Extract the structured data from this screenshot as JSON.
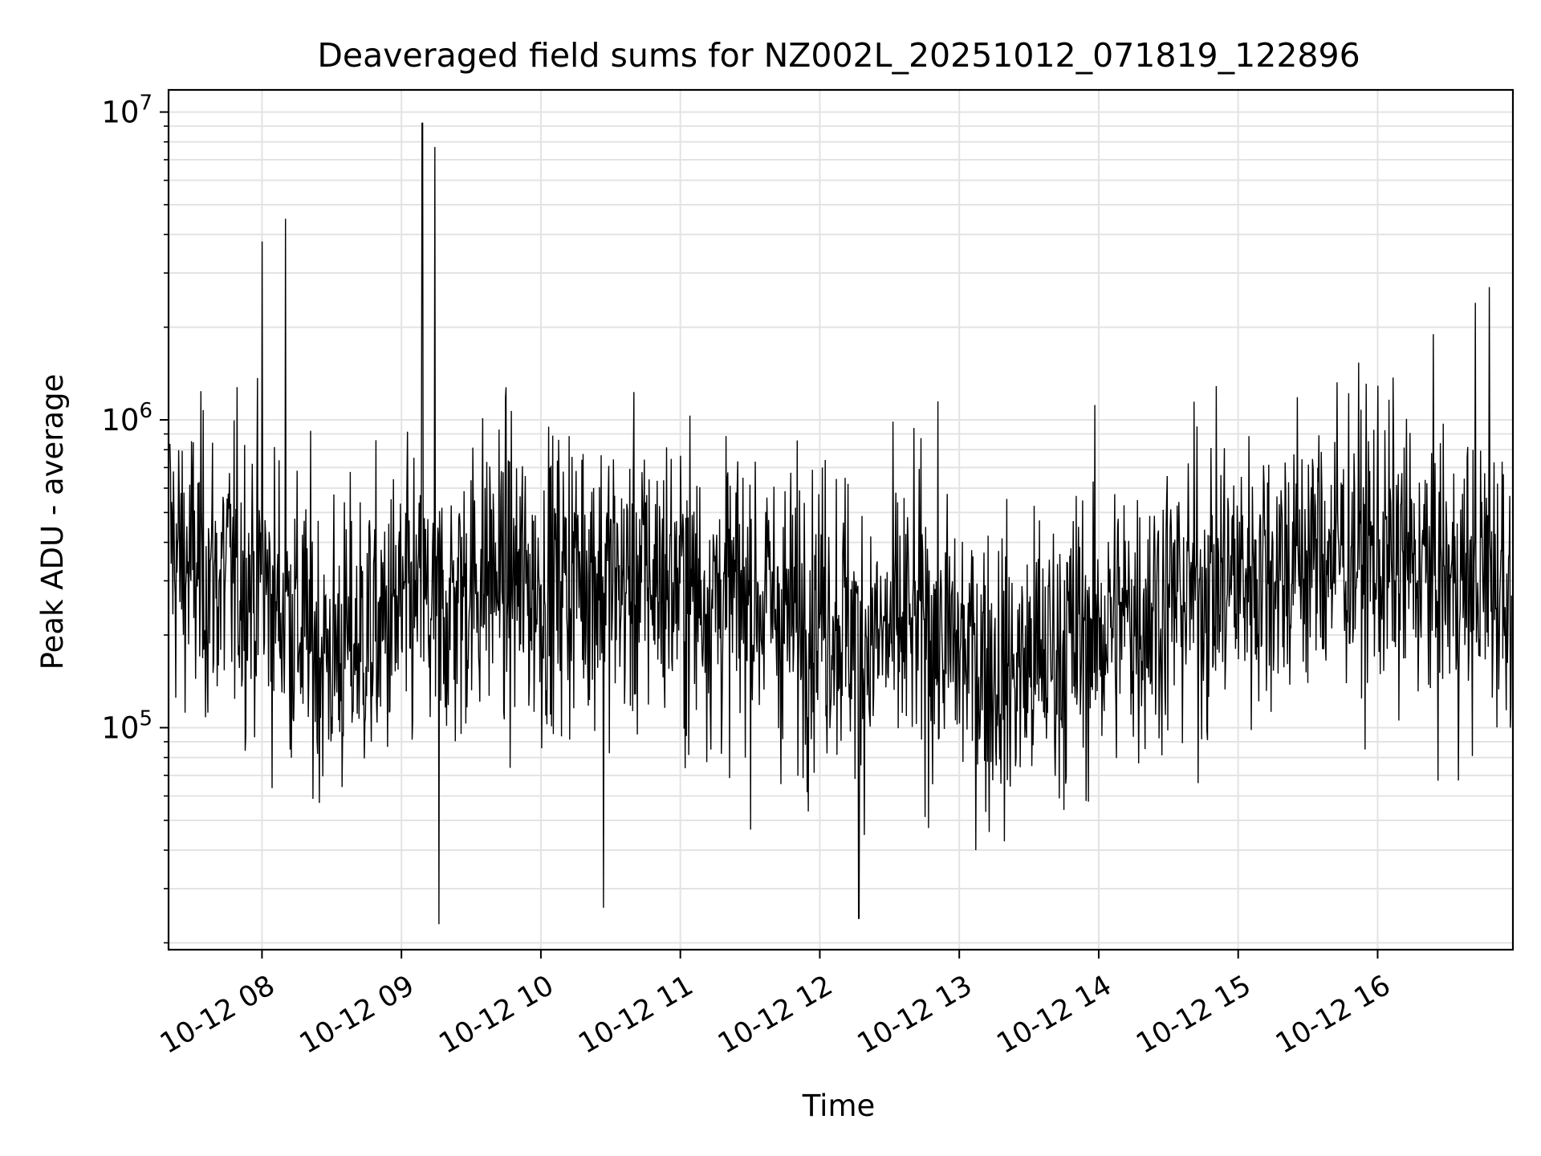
{
  "chart_data": {
    "type": "line",
    "title": "Deaveraged field sums for NZ002L_20251012_071819_122896",
    "xlabel": "Time",
    "ylabel": "Peak ADU - average",
    "y_scale": "log",
    "ylim": [
      19000,
      11800000
    ],
    "xlim_hours": [
      7.33,
      16.97
    ],
    "grid": "on (major and minor)",
    "x_ticks": [
      {
        "hour": 8,
        "label": "10-12 08"
      },
      {
        "hour": 9,
        "label": "10-12 09"
      },
      {
        "hour": 10,
        "label": "10-12 10"
      },
      {
        "hour": 11,
        "label": "10-12 11"
      },
      {
        "hour": 12,
        "label": "10-12 12"
      },
      {
        "hour": 13,
        "label": "10-12 13"
      },
      {
        "hour": 14,
        "label": "10-12 14"
      },
      {
        "hour": 15,
        "label": "10-12 15"
      },
      {
        "hour": 16,
        "label": "10-12 16"
      }
    ],
    "y_ticks": [
      {
        "value": 100000,
        "base": "10",
        "exp": "5"
      },
      {
        "value": 1000000,
        "base": "10",
        "exp": "6"
      },
      {
        "value": 10000000,
        "base": "10",
        "exp": "7"
      }
    ],
    "series": [
      {
        "name": "Peak ADU - average",
        "color": "#000000",
        "x_hours": [
          7.35,
          7.4,
          7.5,
          7.6,
          7.7,
          7.8,
          7.9,
          8.0,
          8.08,
          8.17,
          8.25,
          8.35,
          8.45,
          8.55,
          8.65,
          8.75,
          8.85,
          8.95,
          9.05,
          9.15,
          9.22,
          9.3,
          9.4,
          9.5,
          9.6,
          9.7,
          9.8,
          9.9,
          10.0,
          10.1,
          10.2,
          10.3,
          10.4,
          10.5,
          10.6,
          10.7,
          10.8,
          10.9,
          11.0,
          11.1,
          11.2,
          11.3,
          11.4,
          11.5,
          11.6,
          11.7,
          11.8,
          11.9,
          12.0,
          12.1,
          12.2,
          12.3,
          12.4,
          12.5,
          12.6,
          12.7,
          12.8,
          12.9,
          13.0,
          13.1,
          13.2,
          13.3,
          13.4,
          13.5,
          13.6,
          13.7,
          13.8,
          13.9,
          14.0,
          14.1,
          14.2,
          14.3,
          14.4,
          14.5,
          14.6,
          14.7,
          14.8,
          14.9,
          15.0,
          15.1,
          15.2,
          15.3,
          15.4,
          15.5,
          15.6,
          15.7,
          15.8,
          15.9,
          16.0,
          16.1,
          16.2,
          16.3,
          16.4,
          16.5,
          16.6,
          16.7,
          16.8,
          16.9,
          16.97
        ],
        "typical_level": [
          400000,
          350000,
          330000,
          320000,
          300000,
          320000,
          310000,
          290000,
          260000,
          240000,
          220000,
          200000,
          170000,
          180000,
          190000,
          200000,
          210000,
          230000,
          240000,
          250000,
          230000,
          240000,
          260000,
          300000,
          320000,
          320000,
          300000,
          290000,
          280000,
          300000,
          320000,
          330000,
          320000,
          300000,
          290000,
          300000,
          310000,
          300000,
          290000,
          280000,
          270000,
          270000,
          260000,
          270000,
          260000,
          240000,
          230000,
          240000,
          250000,
          240000,
          220000,
          200000,
          190000,
          200000,
          210000,
          220000,
          210000,
          190000,
          180000,
          170000,
          160000,
          150000,
          150000,
          160000,
          170000,
          180000,
          190000,
          200000,
          210000,
          220000,
          230000,
          240000,
          250000,
          260000,
          270000,
          280000,
          290000,
          300000,
          310000,
          320000,
          330000,
          340000,
          350000,
          360000,
          370000,
          380000,
          380000,
          370000,
          360000,
          350000,
          340000,
          330000,
          320000,
          300000,
          290000,
          300000,
          310000,
          300000,
          280000
        ],
        "notable_peaks": [
          {
            "hour": 8.0,
            "value": 3800000
          },
          {
            "hour": 8.17,
            "value": 4500000
          },
          {
            "hour": 9.15,
            "value": 9200000
          },
          {
            "hour": 9.24,
            "value": 7700000
          },
          {
            "hour": 16.7,
            "value": 2400000
          },
          {
            "hour": 16.8,
            "value": 2700000
          }
        ],
        "notable_dips": [
          {
            "hour": 9.27,
            "value": 23000
          },
          {
            "hour": 12.28,
            "value": 24000
          },
          {
            "hour": 10.45,
            "value": 26000
          },
          {
            "hour": 13.12,
            "value": 40000
          }
        ]
      }
    ]
  }
}
